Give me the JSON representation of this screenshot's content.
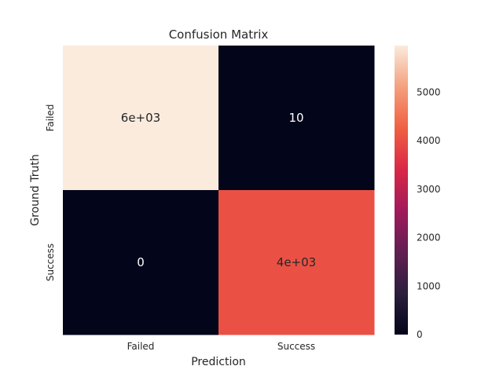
{
  "chart_data": {
    "type": "heatmap",
    "title": "Confusion Matrix",
    "xlabel": "Prediction",
    "ylabel": "Ground Truth",
    "x_categories": [
      "Failed",
      "Success"
    ],
    "y_categories": [
      "Failed",
      "Success"
    ],
    "values": [
      [
        5960,
        10
      ],
      [
        0,
        4030
      ]
    ],
    "cell_labels": [
      [
        "6e+03",
        "10"
      ],
      [
        "0",
        "4e+03"
      ]
    ],
    "colorbar": {
      "range": [
        0,
        5960
      ],
      "ticks": [
        0,
        1000,
        2000,
        3000,
        4000,
        5000
      ],
      "tick_labels": [
        "0",
        "1000",
        "2000",
        "3000",
        "4000",
        "5000"
      ],
      "colormap": "rocket"
    },
    "grid": false
  },
  "colors": {
    "rocket_stops": [
      "#03051a",
      "#2c1e3d",
      "#611f53",
      "#a11a5b",
      "#d92847",
      "#f06043",
      "#f4a07e",
      "#faebdd"
    ],
    "text_dark": "#262626"
  }
}
